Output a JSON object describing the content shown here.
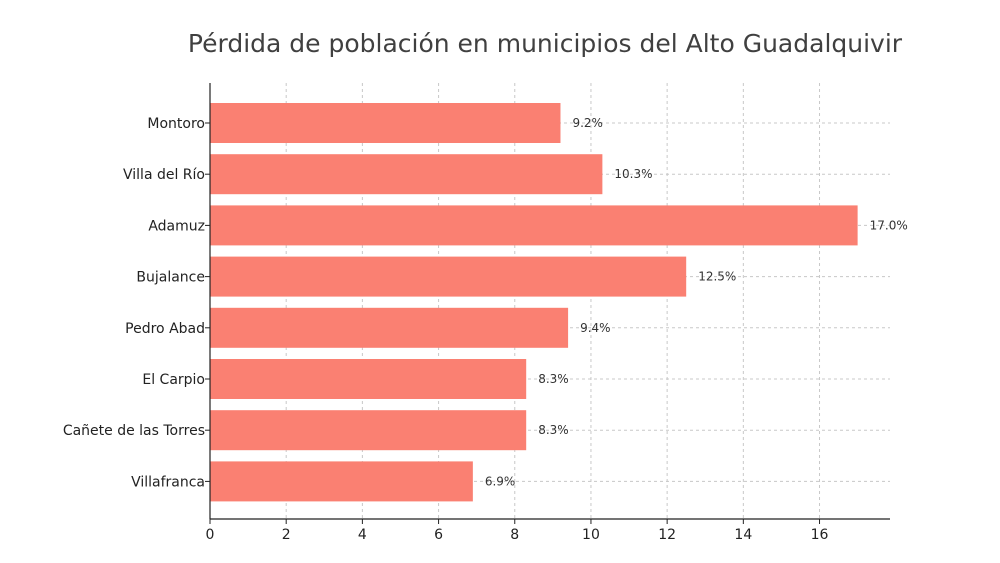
{
  "chart_data": {
    "type": "bar",
    "orientation": "horizontal",
    "title": "Pérdida de población en municipios del Alto Guadalquivir",
    "xlabel": "",
    "ylabel": "",
    "categories": [
      "Montoro",
      "Villa del Río",
      "Adamuz",
      "Bujalance",
      "Pedro Abad",
      "El Carpio",
      "Cañete de las Torres",
      "Villafranca"
    ],
    "values": [
      9.2,
      10.3,
      17.0,
      12.5,
      9.4,
      8.3,
      8.3,
      6.9
    ],
    "data_labels": [
      "9.2%",
      "10.3%",
      "17.0%",
      "12.5%",
      "9.4%",
      "8.3%",
      "8.3%",
      "6.9%"
    ],
    "xlim": [
      0,
      17.85
    ],
    "xticks": [
      0,
      2,
      4,
      6,
      8,
      10,
      12,
      14,
      16
    ],
    "grid": true,
    "colors": {
      "bar": "#fa8072"
    }
  }
}
